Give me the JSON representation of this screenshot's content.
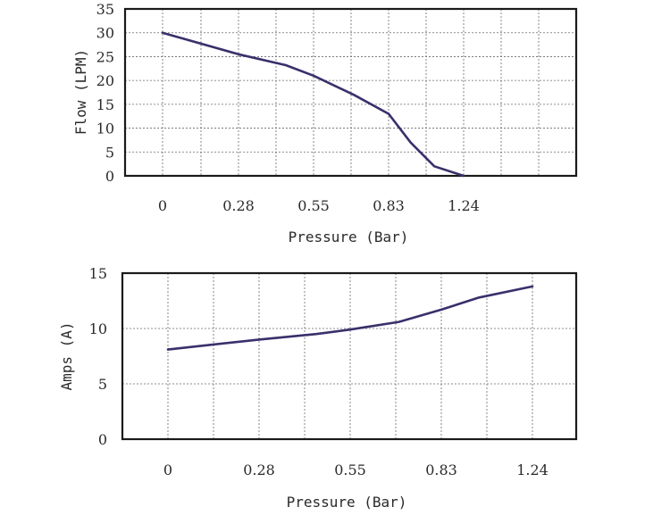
{
  "chart_data": [
    {
      "type": "line",
      "xlabel": "Pressure (Bar)",
      "ylabel": "Flow (LPM)",
      "x_tick_labels": [
        "0",
        "0.28",
        "0.55",
        "0.83",
        "1.24"
      ],
      "y_tick_labels": [
        "0",
        "5",
        "10",
        "15",
        "20",
        "25",
        "30",
        "35"
      ],
      "ylim": [
        0,
        35
      ],
      "grid": true,
      "series": [
        {
          "color": "#3b2f6b",
          "points": [
            {
              "x": 0,
              "y": 30
            },
            {
              "x": 0.28,
              "y": 25.5
            },
            {
              "x": 0.45,
              "y": 23.2
            },
            {
              "x": 0.55,
              "y": 21
            },
            {
              "x": 0.7,
              "y": 17
            },
            {
              "x": 0.83,
              "y": 13
            },
            {
              "x": 0.95,
              "y": 7
            },
            {
              "x": 1.08,
              "y": 2
            },
            {
              "x": 1.24,
              "y": 0
            }
          ]
        }
      ]
    },
    {
      "type": "line",
      "xlabel": "Pressure (Bar)",
      "ylabel": "Amps (A)",
      "x_tick_labels": [
        "0",
        "0.28",
        "0.55",
        "0.83",
        "1.24"
      ],
      "y_tick_labels": [
        "0",
        "5",
        "10",
        "15"
      ],
      "ylim": [
        0,
        15
      ],
      "grid": true,
      "series": [
        {
          "color": "#3b2f6b",
          "points": [
            {
              "x": 0,
              "y": 8.1
            },
            {
              "x": 0.28,
              "y": 9
            },
            {
              "x": 0.45,
              "y": 9.5
            },
            {
              "x": 0.55,
              "y": 9.9
            },
            {
              "x": 0.7,
              "y": 10.6
            },
            {
              "x": 0.83,
              "y": 11.7
            },
            {
              "x": 1.0,
              "y": 12.8
            },
            {
              "x": 1.24,
              "y": 13.8
            }
          ]
        }
      ]
    }
  ]
}
